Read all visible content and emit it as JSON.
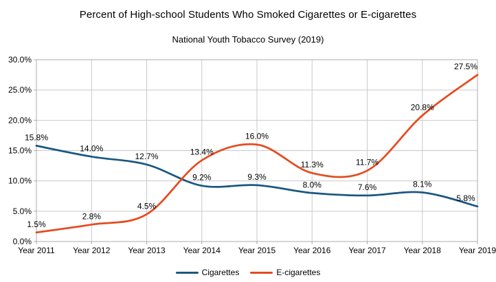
{
  "title": "Percent of High-school Students Who Smoked Cigarettes or E-cigarettes",
  "subtitle": "National Youth Tobacco Survey (2019)",
  "chart_data": {
    "type": "line",
    "categories": [
      "Year 2011",
      "Year 2012",
      "Year 2013",
      "Year 2014",
      "Year 2015",
      "Year 2016",
      "Year 2017",
      "Year 2018",
      "Year 2019"
    ],
    "series": [
      {
        "name": "Cigarettes",
        "color": "#1A5781",
        "values": [
          15.8,
          14.0,
          12.7,
          9.2,
          9.3,
          8.0,
          7.6,
          8.1,
          5.8
        ],
        "labels": [
          "15.8%",
          "14.0%",
          "12.7%",
          "9.2%",
          "9.3%",
          "8.0%",
          "7.6%",
          "8.1%",
          "5.8%"
        ]
      },
      {
        "name": "E-cigarettes",
        "color": "#E64A1F",
        "values": [
          1.5,
          2.8,
          4.5,
          13.4,
          16.0,
          11.3,
          11.7,
          20.8,
          27.5
        ],
        "labels": [
          "1.5%",
          "2.8%",
          "4.5%",
          "13.4%",
          "16.0%",
          "11.3%",
          "11.7%",
          "20.8%",
          "27.5%"
        ]
      }
    ],
    "ylim": [
      0,
      30
    ],
    "y_tick_step": 5,
    "y_tick_labels": [
      "0.0%",
      "5.0%",
      "10.0%",
      "15.0%",
      "20.0%",
      "25.0%",
      "30.0%"
    ],
    "grid": true,
    "smooth": true,
    "data_labels": true,
    "legend_position": "bottom",
    "colors": {
      "grid": "#C9C9C9",
      "axis": "#ABABAB",
      "text": "#000000",
      "background": "#FFFFFF"
    }
  }
}
